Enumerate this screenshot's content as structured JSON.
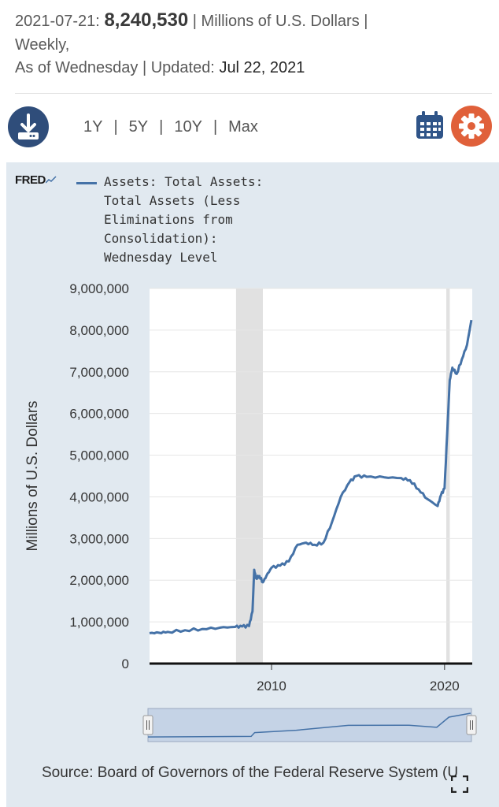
{
  "header": {
    "date": "2021-07-21:",
    "value": "8,240,530",
    "units_text": "| Millions of U.S. Dollars |",
    "frequency": "Weekly,",
    "as_of": "As of Wednesday | Updated:",
    "updated": "Jul 22, 2021"
  },
  "toolbar": {
    "ranges": [
      "1Y",
      "5Y",
      "10Y",
      "Max"
    ],
    "download_icon": "download-icon",
    "calendar_icon": "calendar-icon",
    "settings_icon": "gear-icon"
  },
  "logo": "FRED",
  "legend": {
    "label": "Assets: Total Assets: Total Assets (Less Eliminations from Consolidation): Wednesday Level",
    "color": "#4572a7"
  },
  "source": "Source: Board of Governors of the Federal Reserve System (U",
  "chart_data": {
    "type": "line",
    "ylabel": "Millions of U.S. Dollars",
    "xlabel": "",
    "ylim": [
      0,
      9000000
    ],
    "xlim": [
      2002.95,
      2021.6
    ],
    "yticks": [
      "0",
      "1,000,000",
      "2,000,000",
      "3,000,000",
      "4,000,000",
      "5,000,000",
      "6,000,000",
      "7,000,000",
      "8,000,000",
      "9,000,000"
    ],
    "xticks": [
      "2010",
      "2020"
    ],
    "grid": true,
    "recessions": [
      [
        2007.95,
        2009.5
      ],
      [
        2020.1,
        2020.3
      ]
    ],
    "series": [
      {
        "x": [
          2002.95,
          2003.5,
          2004.0,
          2005.0,
          2006.0,
          2007.0,
          2007.9,
          2008.3,
          2008.7,
          2008.9,
          2009.0,
          2009.1,
          2009.3,
          2009.5,
          2009.7,
          2010.0,
          2010.5,
          2011.0,
          2011.5,
          2012.0,
          2012.5,
          2013.0,
          2013.5,
          2014.0,
          2014.5,
          2014.9,
          2015.5,
          2016.5,
          2017.5,
          2018.0,
          2018.5,
          2019.0,
          2019.6,
          2019.8,
          2020.0,
          2020.15,
          2020.3,
          2020.45,
          2020.7,
          2021.0,
          2021.3,
          2021.55
        ],
        "y": [
          730000,
          740000,
          760000,
          800000,
          830000,
          860000,
          880000,
          890000,
          900000,
          1250000,
          2250000,
          2050000,
          2100000,
          1950000,
          2100000,
          2300000,
          2350000,
          2450000,
          2850000,
          2900000,
          2850000,
          2900000,
          3400000,
          4000000,
          4350000,
          4500000,
          4480000,
          4470000,
          4450000,
          4400000,
          4180000,
          3950000,
          3780000,
          4050000,
          4200000,
          5500000,
          6800000,
          7100000,
          6950000,
          7300000,
          7650000,
          8240530
        ]
      }
    ],
    "navigator": {
      "x": [
        2002.95,
        2008.9,
        2009.1,
        2011.5,
        2014.5,
        2018.0,
        2019.6,
        2020.3,
        2021.55
      ],
      "y": [
        730000,
        900000,
        2100000,
        2850000,
        4400000,
        4450000,
        3780000,
        7000000,
        8240530
      ]
    }
  }
}
